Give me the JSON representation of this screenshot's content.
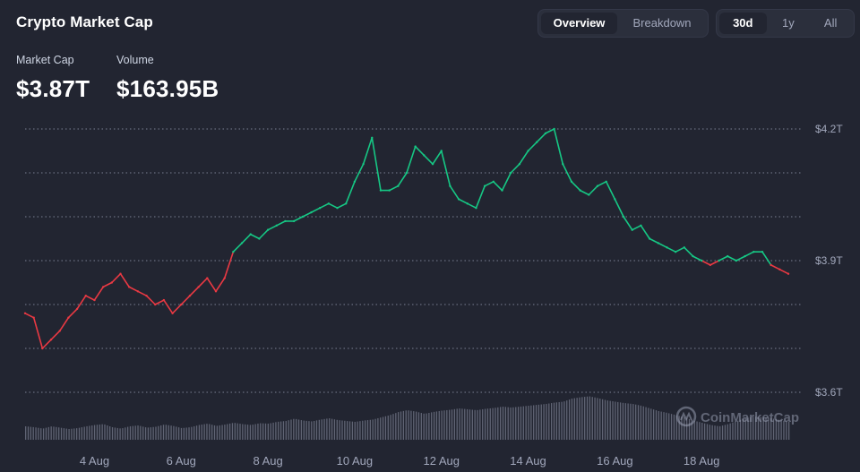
{
  "header": {
    "title": "Crypto Market Cap"
  },
  "stats": {
    "market_cap": {
      "label": "Market Cap",
      "value": "$3.87T"
    },
    "volume": {
      "label": "Volume",
      "value": "$163.95B"
    }
  },
  "view_toggle": {
    "options": [
      "Overview",
      "Breakdown"
    ],
    "selected": "Overview"
  },
  "range_toggle": {
    "options": [
      "30d",
      "1y",
      "All"
    ],
    "selected": "30d"
  },
  "watermark": {
    "text": "CoinMarketCap"
  },
  "colors": {
    "up": "#16c784",
    "down": "#ea3943",
    "background": "#222531",
    "grid": "#a1a7bb",
    "volume_bars": "#6b7080"
  },
  "chart_data": {
    "type": "line",
    "title": "Crypto Market Cap",
    "x_unit": "date (days since 3 Aug)",
    "xlabel": "",
    "ylabel": "",
    "x_tick_labels": [
      "4 Aug",
      "6 Aug",
      "8 Aug",
      "10 Aug",
      "12 Aug",
      "14 Aug",
      "16 Aug",
      "18 Aug"
    ],
    "x_ticks": [
      1,
      3,
      5,
      7,
      9,
      11,
      13,
      15
    ],
    "y_tick_labels": [
      "$3.6T",
      "$3.9T",
      "$4.2T"
    ],
    "y_ticks": [
      3.6,
      3.9,
      4.2
    ],
    "y_gridlines": [
      3.6,
      3.7,
      3.8,
      3.9,
      4.0,
      4.1,
      4.2
    ],
    "xlim": [
      -0.6,
      17.0
    ],
    "ylim": [
      3.6,
      4.2
    ],
    "grid": true,
    "baseline": 3.9,
    "series": [
      {
        "name": "Market Cap",
        "unit": "trillion USD",
        "x": [
          -0.6,
          -0.4,
          -0.2,
          0.0,
          0.2,
          0.4,
          0.6,
          0.8,
          1.0,
          1.2,
          1.4,
          1.6,
          1.8,
          2.0,
          2.2,
          2.4,
          2.6,
          2.8,
          3.0,
          3.2,
          3.4,
          3.6,
          3.8,
          4.0,
          4.2,
          4.4,
          4.6,
          4.8,
          5.0,
          5.2,
          5.4,
          5.6,
          5.8,
          6.0,
          6.2,
          6.4,
          6.6,
          6.8,
          7.0,
          7.2,
          7.4,
          7.6,
          7.8,
          8.0,
          8.2,
          8.4,
          8.6,
          8.8,
          9.0,
          9.2,
          9.4,
          9.6,
          9.8,
          10.0,
          10.2,
          10.4,
          10.6,
          10.8,
          11.0,
          11.2,
          11.4,
          11.6,
          11.8,
          12.0,
          12.2,
          12.4,
          12.6,
          12.8,
          13.0,
          13.2,
          13.4,
          13.6,
          13.8,
          14.0,
          14.2,
          14.4,
          14.6,
          14.8,
          15.0,
          15.2,
          15.4,
          15.6,
          15.8,
          16.0,
          16.2,
          16.4,
          16.6,
          16.8,
          17.0
        ],
        "values": [
          3.78,
          3.77,
          3.7,
          3.72,
          3.74,
          3.77,
          3.79,
          3.82,
          3.81,
          3.84,
          3.85,
          3.87,
          3.84,
          3.83,
          3.82,
          3.8,
          3.81,
          3.78,
          3.8,
          3.82,
          3.84,
          3.86,
          3.83,
          3.86,
          3.92,
          3.94,
          3.96,
          3.95,
          3.97,
          3.98,
          3.99,
          3.99,
          4.0,
          4.01,
          4.02,
          4.03,
          4.02,
          4.03,
          4.08,
          4.12,
          4.18,
          4.06,
          4.06,
          4.07,
          4.1,
          4.16,
          4.14,
          4.12,
          4.15,
          4.07,
          4.04,
          4.03,
          4.02,
          4.07,
          4.08,
          4.06,
          4.1,
          4.12,
          4.15,
          4.17,
          4.19,
          4.2,
          4.12,
          4.08,
          4.06,
          4.05,
          4.07,
          4.08,
          4.04,
          4.0,
          3.97,
          3.98,
          3.95,
          3.94,
          3.93,
          3.92,
          3.93,
          3.91,
          3.9,
          3.89,
          3.9,
          3.91,
          3.9,
          3.91,
          3.92,
          3.92,
          3.89,
          3.88,
          3.87
        ]
      },
      {
        "name": "Volume",
        "type": "bar",
        "x_start": -0.6,
        "x_end": 17.0,
        "relative_levels": [
          0.3,
          0.28,
          0.25,
          0.3,
          0.27,
          0.24,
          0.26,
          0.3,
          0.33,
          0.35,
          0.28,
          0.25,
          0.3,
          0.32,
          0.27,
          0.29,
          0.34,
          0.31,
          0.26,
          0.28,
          0.33,
          0.36,
          0.31,
          0.34,
          0.38,
          0.35,
          0.33,
          0.37,
          0.36,
          0.4,
          0.42,
          0.47,
          0.43,
          0.41,
          0.45,
          0.48,
          0.44,
          0.42,
          0.4,
          0.43,
          0.45,
          0.5,
          0.55,
          0.62,
          0.66,
          0.63,
          0.58,
          0.62,
          0.65,
          0.67,
          0.7,
          0.68,
          0.66,
          0.69,
          0.71,
          0.74,
          0.72,
          0.74,
          0.76,
          0.78,
          0.8,
          0.83,
          0.85,
          0.92,
          0.95,
          0.97,
          0.93,
          0.88,
          0.85,
          0.82,
          0.8,
          0.76,
          0.7,
          0.64,
          0.6,
          0.55,
          0.5,
          0.43,
          0.38,
          0.33,
          0.3,
          0.35,
          0.42,
          0.48,
          0.52,
          0.5,
          0.48,
          0.44,
          0.4
        ]
      }
    ]
  }
}
